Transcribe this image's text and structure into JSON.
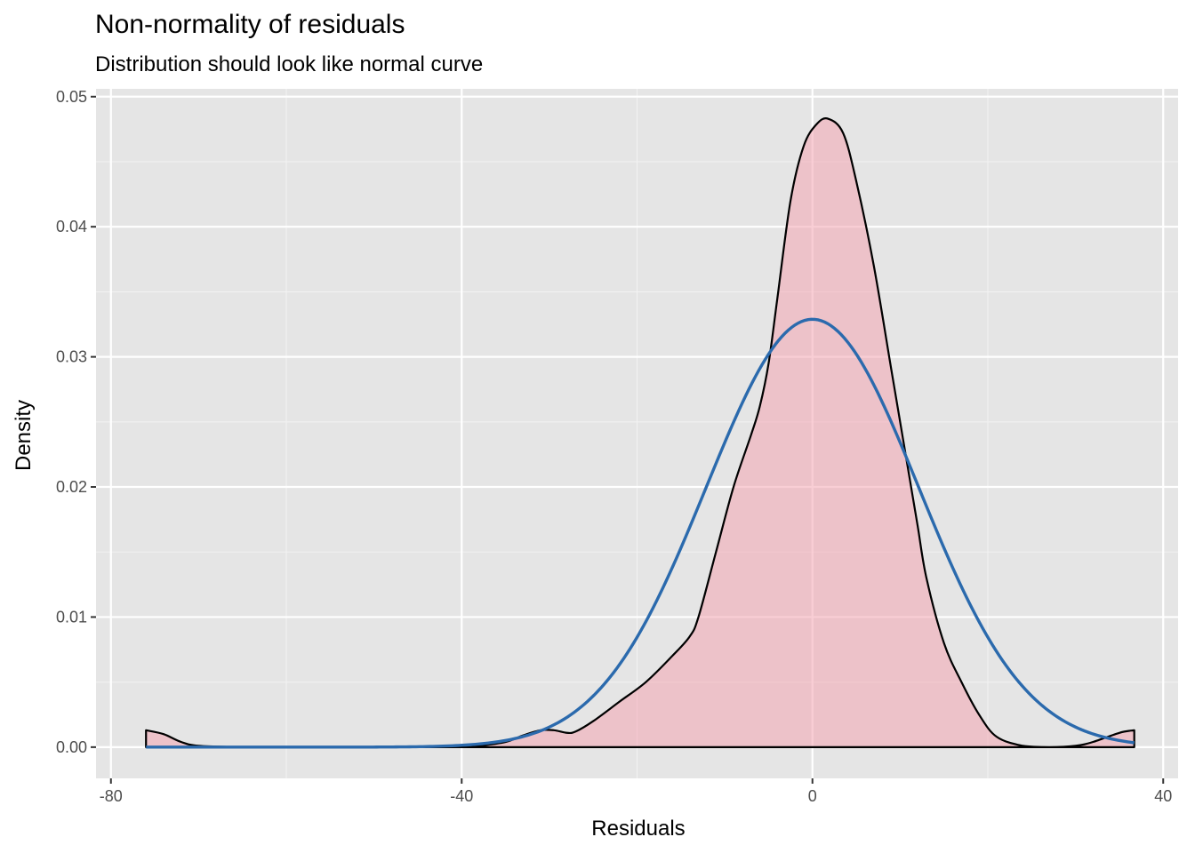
{
  "chart_data": {
    "type": "area",
    "title": "Non-normality of residuals",
    "subtitle": "Distribution should look like normal curve",
    "xlabel": "Residuals",
    "ylabel": "Density",
    "xlim": [
      -81.7,
      41.7
    ],
    "ylim": [
      -0.0024,
      0.0506
    ],
    "x_ticks": [
      "-80",
      "-40",
      "0",
      "40"
    ],
    "x_tick_values": [
      -80,
      -40,
      0,
      40
    ],
    "y_ticks": [
      "0.00",
      "0.01",
      "0.02",
      "0.03",
      "0.04",
      "0.05"
    ],
    "y_tick_values": [
      0,
      0.01,
      0.02,
      0.03,
      0.04,
      0.05
    ],
    "grid": true,
    "legend": "none",
    "colors": {
      "panel": "#e5e5e5",
      "grid": "#ffffff",
      "density_fill": "#f4a6b3",
      "density_line": "#000000",
      "normal_line": "#2b6aad"
    },
    "series": [
      {
        "kind": "density",
        "x": [
          -76,
          -74,
          -72,
          -70,
          -65,
          -60,
          -50,
          -40,
          -38,
          -35,
          -33,
          -31,
          -29.5,
          -28,
          -27,
          -25,
          -22,
          -19,
          -16,
          -14,
          -13,
          -11,
          -9,
          -7,
          -6,
          -5,
          -4,
          -2.5,
          -1,
          0.5,
          1.8,
          3.5,
          5,
          7,
          9,
          11,
          12,
          13,
          15,
          17,
          19,
          21,
          24,
          27,
          30,
          32,
          35,
          36.7
        ],
        "y": [
          0.0013,
          0.001,
          0.0004,
          0.0001,
          0,
          0,
          0,
          0,
          0.0001,
          0.0004,
          0.0009,
          0.0013,
          0.0013,
          0.0011,
          0.0012,
          0.002,
          0.0035,
          0.005,
          0.007,
          0.0085,
          0.01,
          0.015,
          0.02,
          0.024,
          0.0262,
          0.0295,
          0.0345,
          0.042,
          0.0462,
          0.0479,
          0.0483,
          0.0472,
          0.0435,
          0.037,
          0.029,
          0.021,
          0.017,
          0.013,
          0.008,
          0.005,
          0.0025,
          0.0008,
          0.0001,
          0,
          0.0001,
          0.0004,
          0.0011,
          0.0013
        ]
      },
      {
        "kind": "normal",
        "mean": 0,
        "sd": 12.13,
        "x_range": [
          -76,
          36.7
        ]
      }
    ]
  }
}
